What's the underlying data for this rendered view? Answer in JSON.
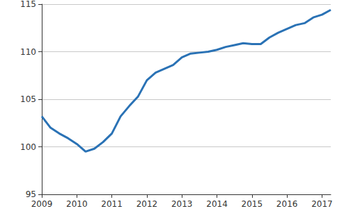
{
  "chart_data": {
    "type": "line",
    "categories": [
      "2009",
      null,
      null,
      null,
      "2010",
      null,
      null,
      null,
      "2011",
      null,
      null,
      null,
      "2012",
      null,
      null,
      null,
      "2013",
      null,
      null,
      null,
      "2014",
      null,
      null,
      null,
      "2015",
      null,
      null,
      null,
      "2016",
      null,
      null,
      null,
      "2017",
      null
    ],
    "values": [
      103.2,
      102.0,
      101.4,
      100.9,
      100.3,
      99.5,
      99.8,
      100.5,
      101.4,
      103.2,
      104.3,
      105.3,
      107.0,
      107.8,
      108.2,
      108.6,
      109.4,
      109.8,
      109.9,
      110.0,
      110.2,
      110.5,
      110.7,
      110.9,
      110.8,
      110.8,
      111.5,
      112.0,
      112.4,
      112.8,
      113.0,
      113.6,
      113.9,
      114.4
    ],
    "color": "#2a72b5",
    "ylim": [
      95,
      115
    ],
    "yticks": [
      95,
      100,
      105,
      110,
      115
    ],
    "grid": true
  }
}
